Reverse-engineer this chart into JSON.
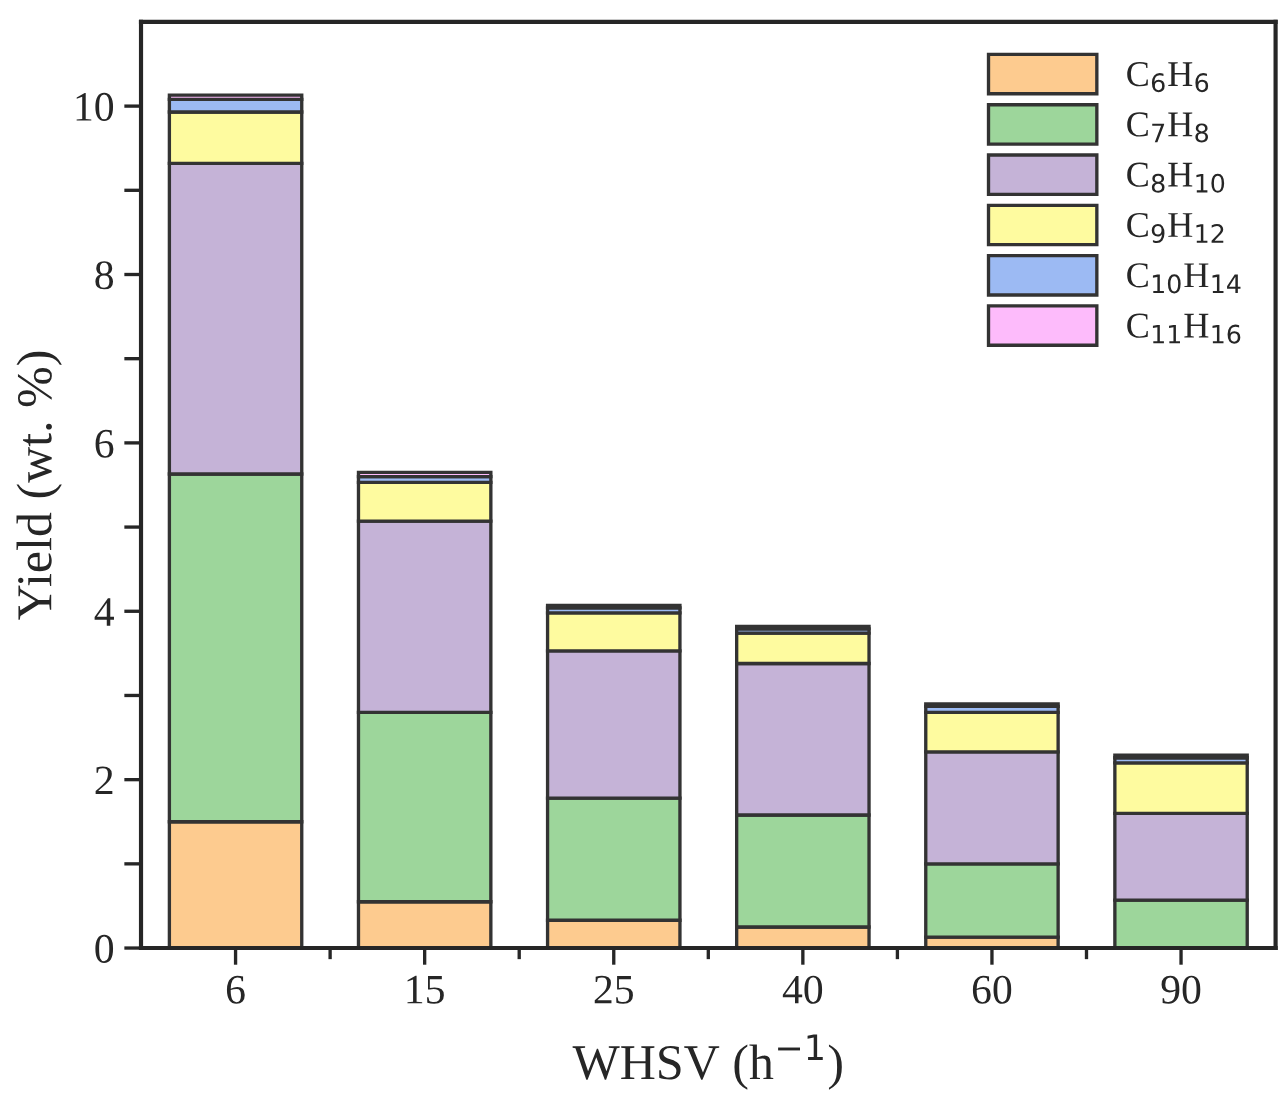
{
  "chart_data": {
    "type": "bar",
    "stacked": true,
    "xlabel": "WHSV (h$^{−1}$)",
    "ylabel": "Yield (wt. %)",
    "categories": [
      "6",
      "15",
      "25",
      "40",
      "60",
      "90"
    ],
    "series": [
      {
        "name": "C$_{6}$H$_{6}$",
        "color": "#fdcb8f",
        "values": [
          1.5,
          0.55,
          0.33,
          0.25,
          0.13,
          0
        ]
      },
      {
        "name": "C$_{7}$H$_{8}$",
        "color": "#9dd69b",
        "values": [
          4.13,
          2.25,
          1.45,
          1.33,
          0.87,
          0.57
        ]
      },
      {
        "name": "C$_{8}$H$_{10}$",
        "color": "#c5b3d7",
        "values": [
          3.69,
          2.27,
          1.75,
          1.8,
          1.33,
          1.03
        ]
      },
      {
        "name": "C$_{9}$H$_{12}$",
        "color": "#fefb9f",
        "values": [
          0.61,
          0.46,
          0.45,
          0.36,
          0.47,
          0.6
        ]
      },
      {
        "name": "C$_{10}$H$_{14}$",
        "color": "#9cbaf3",
        "values": [
          0.15,
          0.07,
          0.06,
          0.05,
          0.07,
          0.06
        ]
      },
      {
        "name": "C$_{11}$H$_{16}$",
        "color": "#fdbbfb",
        "values": [
          0.05,
          0.05,
          0.03,
          0.03,
          0.03,
          0.03
        ]
      }
    ],
    "ylim": [
      0,
      11
    ],
    "yticks": [
      0,
      {
        "value": 1,
        "label": null
      },
      2,
      {
        "value": 3,
        "label": null
      },
      4,
      {
        "value": 5,
        "label": null
      },
      6,
      {
        "value": 7,
        "label": null
      },
      8,
      {
        "value": 9,
        "label": null
      },
      10
    ],
    "legend": "top right",
    "grid": false
  }
}
